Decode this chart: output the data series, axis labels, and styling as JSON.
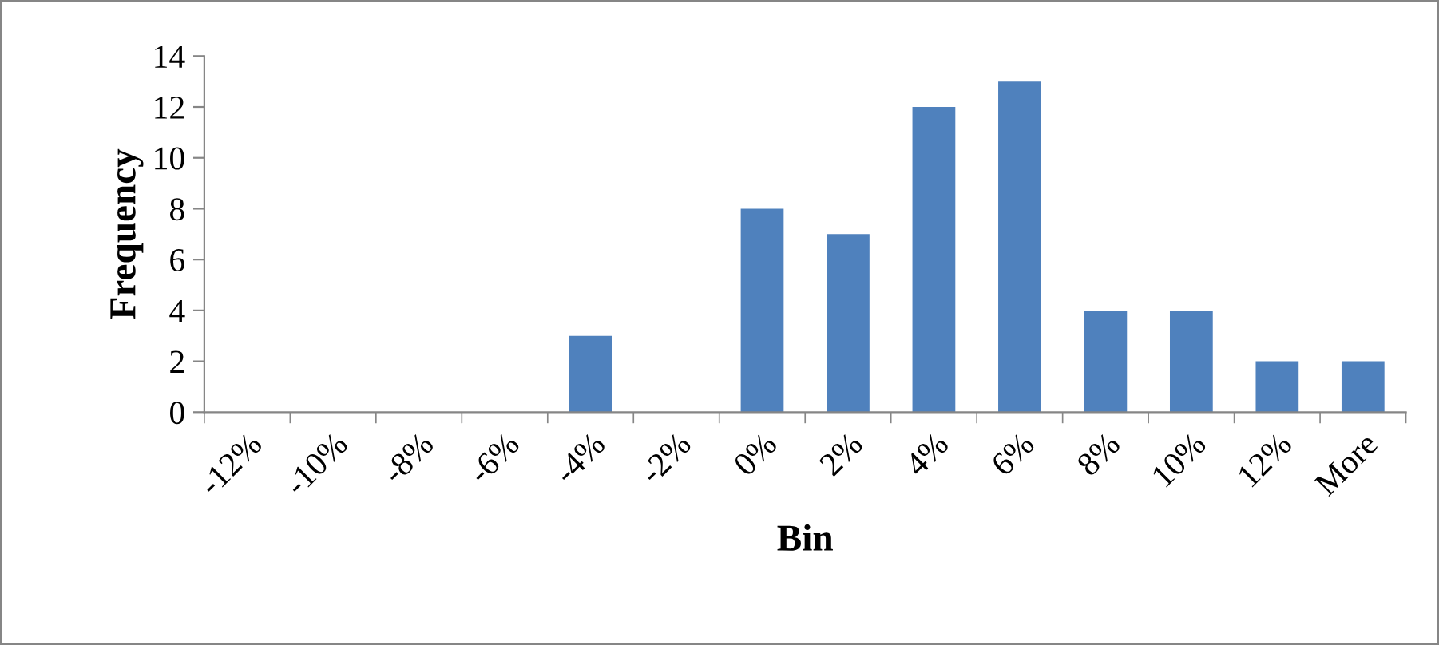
{
  "chart_data": {
    "type": "bar",
    "xlabel": "Bin",
    "ylabel": "Frequency",
    "categories": [
      "-12%",
      "-10%",
      "-8%",
      "-6%",
      "-4%",
      "-2%",
      "0%",
      "2%",
      "4%",
      "6%",
      "8%",
      "10%",
      "12%",
      "More"
    ],
    "values": [
      0,
      0,
      0,
      0,
      3,
      0,
      8,
      7,
      12,
      13,
      4,
      4,
      2,
      2
    ],
    "color": "#4f81bd",
    "ylim": [
      0,
      14
    ],
    "yticks": [
      0,
      2,
      4,
      6,
      8,
      10,
      12,
      14
    ],
    "grid": false,
    "legend": false
  }
}
